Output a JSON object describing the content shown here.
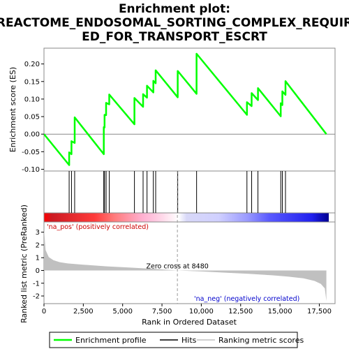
{
  "chart_data": {
    "type": "line",
    "title_lines": [
      "Enrichment plot:",
      "REACTOME_ENDOSOMAL_SORTING_COMPLEX_REQUIR",
      "ED_FOR_TRANSPORT_ESCRT"
    ],
    "xlabel": "Rank in Ordered Dataset",
    "es_ylabel": "Enrichment score (ES)",
    "metric_ylabel": "Ranked list metric (PreRanked)",
    "xlim": [
      0,
      18500
    ],
    "es_ylim": [
      -0.105,
      0.245
    ],
    "metric_ylim": [
      -2.6,
      3.8
    ],
    "x_ticks": [
      0,
      2500,
      5000,
      7500,
      10000,
      12500,
      15000,
      17500
    ],
    "x_tick_labels": [
      "0",
      "2,500",
      "5,000",
      "7,500",
      "10,000",
      "12,500",
      "15,000",
      "17,500"
    ],
    "es_ticks": [
      -0.1,
      -0.05,
      0.0,
      0.05,
      0.1,
      0.15,
      0.2
    ],
    "es_tick_labels": [
      "-0.10",
      "-0.05",
      "0.00",
      "0.05",
      "0.10",
      "0.15",
      "0.20"
    ],
    "metric_ticks": [
      -2,
      -1,
      0,
      1,
      2,
      3
    ],
    "metric_tick_labels": [
      "-2",
      "-1",
      "0",
      "1",
      "2",
      "3"
    ],
    "hits": [
      1600,
      1750,
      1950,
      3800,
      3850,
      3950,
      4150,
      5750,
      6300,
      6550,
      6950,
      7100,
      8500,
      9700,
      12900,
      13200,
      13600,
      15050,
      15150,
      15350
    ],
    "series": [
      {
        "name": "Enrichment profile",
        "color": "#00ff00",
        "x": [
          0,
          1600,
          1600,
          1750,
          1750,
          1950,
          1950,
          3800,
          3800,
          3850,
          3850,
          3950,
          3950,
          4150,
          4150,
          5750,
          5750,
          6300,
          6300,
          6550,
          6550,
          6950,
          6950,
          7100,
          7100,
          8500,
          8500,
          9700,
          9700,
          12900,
          12900,
          13200,
          13200,
          13600,
          13600,
          15050,
          15050,
          15150,
          15150,
          15350,
          15350,
          17950
        ],
        "y": [
          0.0,
          -0.088,
          -0.052,
          -0.057,
          -0.02,
          -0.025,
          0.048,
          -0.057,
          0.02,
          0.019,
          0.055,
          0.054,
          0.089,
          0.085,
          0.113,
          0.028,
          0.103,
          0.078,
          0.114,
          0.104,
          0.138,
          0.119,
          0.152,
          0.145,
          0.182,
          0.105,
          0.18,
          0.115,
          0.229,
          0.055,
          0.091,
          0.08,
          0.117,
          0.097,
          0.131,
          0.051,
          0.088,
          0.083,
          0.122,
          0.112,
          0.151,
          0.0
        ]
      },
      {
        "name": "Hits",
        "color": "#000000"
      },
      {
        "name": "Ranking metric scores",
        "color": "#c0c0c0",
        "x": [
          0,
          100,
          300,
          600,
          1000,
          1500,
          2500,
          4000,
          5500,
          7000,
          8480,
          10000,
          11500,
          13000,
          14500,
          15500,
          16500,
          17200,
          17600,
          17850,
          17950
        ],
        "y": [
          3.3,
          1.6,
          1.05,
          0.8,
          0.65,
          0.55,
          0.45,
          0.32,
          0.22,
          0.12,
          0.0,
          -0.08,
          -0.17,
          -0.26,
          -0.38,
          -0.48,
          -0.62,
          -0.82,
          -1.05,
          -1.4,
          -2.4
        ]
      }
    ],
    "zero_cross_label": "Zero cross at 8480",
    "zero_cross_x": 8480,
    "pos_label": "'na_pos' (positively correlated)",
    "neg_label": "'na_neg' (negatively correlated)",
    "pos_label_color": "#cc0000",
    "neg_label_color": "#0000cc",
    "heat_gradient": [
      {
        "x": 0,
        "color": "#ff0000"
      },
      {
        "x": 500,
        "color": "#cc1a22"
      },
      {
        "x": 3200,
        "color": "#ff3b3b"
      },
      {
        "x": 4400,
        "color": "#ff7a7a"
      },
      {
        "x": 6200,
        "color": "#ffb0d0"
      },
      {
        "x": 7000,
        "color": "#ffc8e0"
      },
      {
        "x": 8480,
        "color": "#ffffff"
      },
      {
        "x": 9000,
        "color": "#d8d8f8"
      },
      {
        "x": 11000,
        "color": "#d0d0ff"
      },
      {
        "x": 12800,
        "color": "#9a9aff"
      },
      {
        "x": 14200,
        "color": "#5a5aff"
      },
      {
        "x": 16900,
        "color": "#2020ee"
      },
      {
        "x": 17400,
        "color": "#1010c0"
      },
      {
        "x": 17950,
        "color": "#000090"
      }
    ],
    "legend": [
      {
        "label": "Enrichment profile",
        "color": "#00ff00"
      },
      {
        "label": "Hits",
        "color": "#000000"
      },
      {
        "label": "Ranking metric scores",
        "color": "#c0c0c0"
      }
    ]
  }
}
